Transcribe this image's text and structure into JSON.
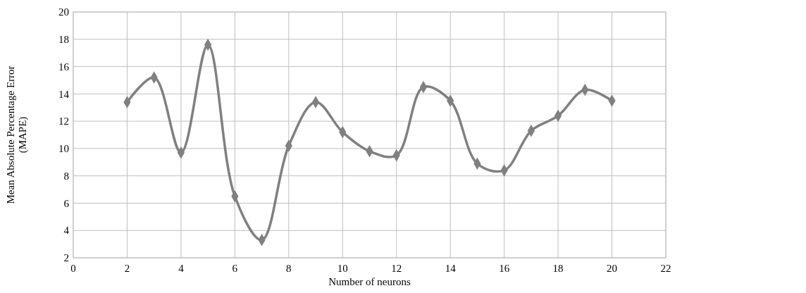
{
  "chart_data": {
    "type": "line",
    "xlabel": "Number of neurons",
    "ylabel": "Mean Absolute Percentage Error (MAPE)",
    "x": [
      2,
      3,
      4,
      5,
      6,
      7,
      8,
      9,
      10,
      11,
      12,
      13,
      14,
      15,
      16,
      17,
      18,
      19,
      20
    ],
    "series": [
      {
        "color": "#808080",
        "values": [
          13.4,
          15.2,
          9.7,
          17.6,
          6.5,
          3.3,
          10.2,
          13.4,
          11.2,
          9.8,
          9.5,
          14.5,
          13.5,
          8.9,
          8.4,
          11.3,
          12.4,
          14.3,
          13.5
        ]
      }
    ],
    "xlim": [
      0,
      22
    ],
    "xticks": [
      0,
      2,
      4,
      6,
      8,
      10,
      12,
      14,
      16,
      18,
      20,
      22
    ],
    "ylim": [
      2,
      20
    ],
    "yticks": [
      2,
      4,
      6,
      8,
      10,
      12,
      14,
      16,
      18,
      20
    ],
    "grid": true,
    "marker": "diamond",
    "line_style": "solid"
  }
}
